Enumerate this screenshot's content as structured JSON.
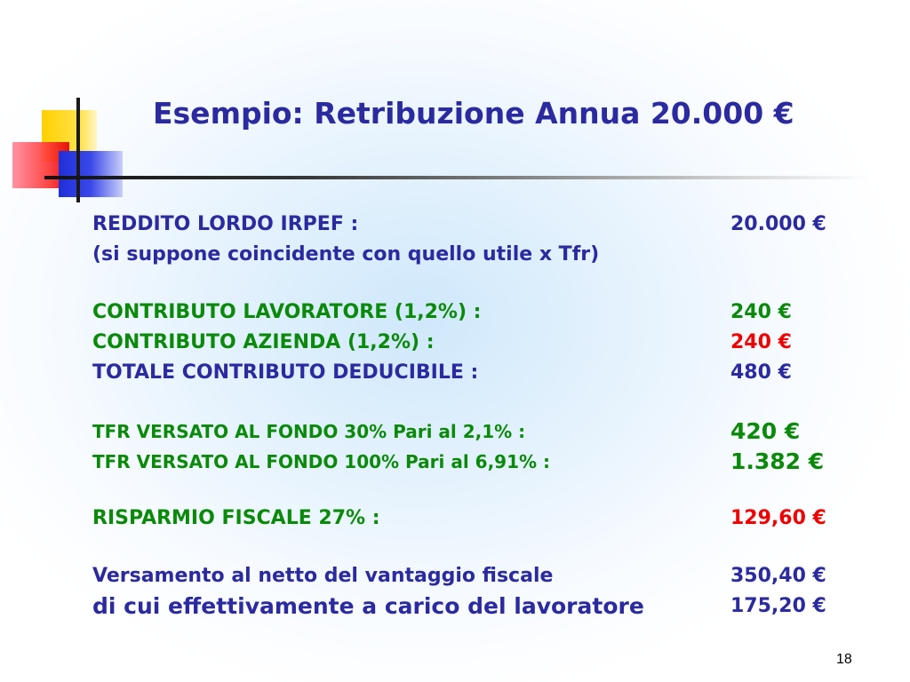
{
  "slide": {
    "title": "Esempio: Retribuzione Annua 20.000 €",
    "page_number": "18"
  },
  "rows": {
    "reddito_label": "REDDITO LORDO IRPEF :",
    "reddito_value": "20.000 €",
    "note_label": "(si suppone coincidente con quello utile x Tfr)",
    "contrib_lav_label": "CONTRIBUTO LAVORATORE (1,2%) :",
    "contrib_lav_value": "240 €",
    "contrib_az_label": "CONTRIBUTO AZIENDA (1,2%) :",
    "contrib_az_value": "240 €",
    "totale_label": "TOTALE CONTRIBUTO DEDUCIBILE :",
    "totale_value": "480 €",
    "tfr30_label": "TFR VERSATO AL FONDO 30% Pari al 2,1% :",
    "tfr30_value": "420 €",
    "tfr100_label": "TFR VERSATO AL FONDO 100% Pari al 6,91% :",
    "tfr100_value": "1.382 €",
    "risparmio_label": "RISPARMIO FISCALE 27% :",
    "risparmio_value": "129,60 €",
    "versamento_label": "Versamento al netto del vantaggio fiscale",
    "versamento_value": "350,40 €",
    "carico_label": "di cui effettivamente a carico del lavoratore",
    "carico_value": "175,20 €"
  },
  "colors": {
    "title_blue": "#2b2aa0",
    "text_green": "#0a8a0a",
    "highlight_red": "#ee0000"
  }
}
